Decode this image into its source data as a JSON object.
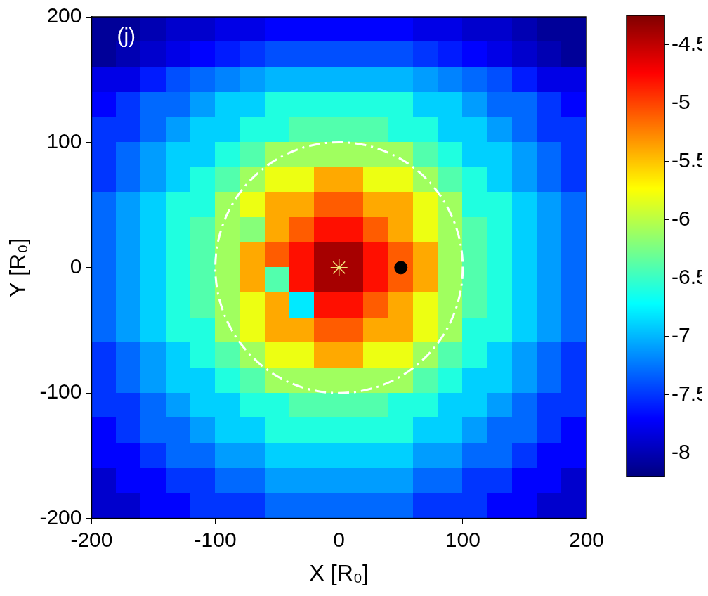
{
  "chart_data": {
    "type": "heatmap",
    "panel": "(j)",
    "x_label": "X [R₀]",
    "y_label": "Y [R₀]",
    "xlim": [
      -200,
      200
    ],
    "ylim": [
      -200,
      200
    ],
    "xticks": [
      -200,
      -100,
      0,
      100,
      200
    ],
    "yticks": [
      -200,
      -100,
      0,
      100,
      200
    ],
    "grid": false,
    "x": [
      -190,
      -170,
      -150,
      -130,
      -110,
      -90,
      -70,
      -50,
      -30,
      -10,
      10,
      30,
      50,
      70,
      90,
      110,
      130,
      150,
      170,
      190
    ],
    "y": [
      190,
      170,
      150,
      130,
      110,
      90,
      70,
      50,
      30,
      10,
      -10,
      -30,
      -50,
      -70,
      -90,
      -110,
      -130,
      -150,
      -170,
      -190
    ],
    "cells": [
      [
        -8.1,
        -8.1,
        -8.0,
        -7.9,
        -7.9,
        -7.8,
        -7.8,
        -7.7,
        -7.7,
        -7.7,
        -7.7,
        -7.7,
        -7.7,
        -7.8,
        -7.8,
        -7.9,
        -7.9,
        -8.0,
        -8.1,
        -8.1
      ],
      [
        -8.1,
        -8.0,
        -7.9,
        -7.8,
        -7.7,
        -7.6,
        -7.5,
        -7.4,
        -7.4,
        -7.4,
        -7.4,
        -7.4,
        -7.4,
        -7.5,
        -7.6,
        -7.7,
        -7.8,
        -7.9,
        -8.0,
        -8.1
      ],
      [
        -7.8,
        -7.8,
        -7.6,
        -7.4,
        -7.3,
        -7.2,
        -7.1,
        -7.0,
        -7.0,
        -7.0,
        -7.0,
        -7.0,
        -7.0,
        -7.1,
        -7.2,
        -7.3,
        -7.4,
        -7.6,
        -7.8,
        -7.8
      ],
      [
        -7.7,
        -7.5,
        -7.3,
        -7.3,
        -7.1,
        -6.9,
        -6.9,
        -6.6,
        -6.6,
        -6.6,
        -6.6,
        -6.6,
        -6.6,
        -6.9,
        -6.9,
        -7.1,
        -7.3,
        -7.3,
        -7.5,
        -7.7
      ],
      [
        -7.5,
        -7.5,
        -7.3,
        -7.1,
        -6.9,
        -6.9,
        -6.6,
        -6.6,
        -6.4,
        -6.4,
        -6.4,
        -6.4,
        -6.6,
        -6.6,
        -6.9,
        -6.9,
        -7.1,
        -7.3,
        -7.5,
        -7.5
      ],
      [
        -7.5,
        -7.3,
        -7.1,
        -6.9,
        -6.9,
        -6.6,
        -6.4,
        -6.1,
        -6.1,
        -6.1,
        -6.1,
        -6.1,
        -6.1,
        -6.4,
        -6.6,
        -6.9,
        -6.9,
        -7.1,
        -7.3,
        -7.5
      ],
      [
        -7.5,
        -7.3,
        -7.1,
        -6.9,
        -6.6,
        -6.4,
        -6.1,
        -5.8,
        -5.8,
        -5.4,
        -5.4,
        -5.8,
        -5.8,
        -6.1,
        -6.4,
        -6.6,
        -6.9,
        -7.1,
        -7.3,
        -7.5
      ],
      [
        -7.3,
        -7.1,
        -6.9,
        -6.6,
        -6.6,
        -6.1,
        -5.8,
        -5.4,
        -5.4,
        -5.1,
        -5.1,
        -5.4,
        -5.4,
        -5.8,
        -6.1,
        -6.6,
        -6.6,
        -6.9,
        -7.1,
        -7.3
      ],
      [
        -7.3,
        -7.1,
        -6.9,
        -6.6,
        -6.4,
        -6.1,
        -6.2,
        -5.4,
        -5.1,
        -4.8,
        -4.8,
        -5.1,
        -5.4,
        -5.8,
        -6.1,
        -6.4,
        -6.6,
        -6.9,
        -7.1,
        -7.3
      ],
      [
        -7.3,
        -7.1,
        -6.9,
        -6.6,
        -6.4,
        -6.1,
        -5.4,
        -5.1,
        -4.8,
        -4.4,
        -4.4,
        -4.8,
        -5.1,
        -5.4,
        -6.1,
        -6.4,
        -6.6,
        -6.9,
        -7.1,
        -7.3
      ],
      [
        -7.3,
        -7.1,
        -6.9,
        -6.6,
        -6.4,
        -6.1,
        -5.4,
        -6.4,
        -4.8,
        -4.4,
        -4.4,
        -4.8,
        -5.1,
        -5.4,
        -6.1,
        -6.4,
        -6.6,
        -6.9,
        -7.1,
        -7.3
      ],
      [
        -7.3,
        -7.1,
        -6.9,
        -6.6,
        -6.4,
        -6.1,
        -5.8,
        -5.4,
        -6.8,
        -4.8,
        -4.8,
        -5.1,
        -5.4,
        -5.8,
        -6.1,
        -6.4,
        -6.6,
        -6.9,
        -7.1,
        -7.3
      ],
      [
        -7.3,
        -7.1,
        -6.9,
        -6.6,
        -6.6,
        -6.1,
        -5.8,
        -5.4,
        -5.4,
        -5.1,
        -5.1,
        -5.4,
        -5.4,
        -5.8,
        -6.1,
        -6.6,
        -6.6,
        -6.9,
        -7.1,
        -7.3
      ],
      [
        -7.5,
        -7.3,
        -7.1,
        -6.9,
        -6.6,
        -6.4,
        -6.1,
        -5.8,
        -5.8,
        -5.4,
        -5.4,
        -5.8,
        -5.8,
        -6.1,
        -6.4,
        -6.6,
        -6.9,
        -7.1,
        -7.3,
        -7.5
      ],
      [
        -7.5,
        -7.3,
        -7.1,
        -6.9,
        -6.9,
        -6.6,
        -6.4,
        -6.1,
        -6.1,
        -6.1,
        -6.1,
        -6.1,
        -6.1,
        -6.4,
        -6.6,
        -6.9,
        -6.9,
        -7.1,
        -7.3,
        -7.5
      ],
      [
        -7.5,
        -7.5,
        -7.3,
        -7.1,
        -6.9,
        -6.9,
        -6.6,
        -6.6,
        -6.4,
        -6.4,
        -6.4,
        -6.4,
        -6.6,
        -6.6,
        -6.9,
        -6.9,
        -7.1,
        -7.3,
        -7.5,
        -7.5
      ],
      [
        -7.7,
        -7.5,
        -7.3,
        -7.3,
        -7.1,
        -6.9,
        -6.9,
        -6.6,
        -6.6,
        -6.6,
        -6.6,
        -6.6,
        -6.6,
        -6.9,
        -6.9,
        -7.1,
        -7.3,
        -7.3,
        -7.5,
        -7.7
      ],
      [
        -7.7,
        -7.7,
        -7.5,
        -7.3,
        -7.3,
        -7.1,
        -7.1,
        -6.9,
        -6.9,
        -6.9,
        -6.9,
        -6.9,
        -6.9,
        -7.1,
        -7.1,
        -7.3,
        -7.3,
        -7.5,
        -7.7,
        -7.7
      ],
      [
        -7.9,
        -7.7,
        -7.7,
        -7.5,
        -7.5,
        -7.3,
        -7.3,
        -7.1,
        -7.1,
        -7.1,
        -7.1,
        -7.1,
        -7.1,
        -7.3,
        -7.3,
        -7.5,
        -7.5,
        -7.7,
        -7.7,
        -7.9
      ],
      [
        -7.9,
        -7.9,
        -7.7,
        -7.7,
        -7.5,
        -7.5,
        -7.5,
        -7.3,
        -7.3,
        -7.3,
        -7.3,
        -7.3,
        -7.3,
        -7.5,
        -7.5,
        -7.5,
        -7.7,
        -7.7,
        -7.9,
        -7.9
      ]
    ],
    "color_range": [
      -8.2,
      -4.25
    ],
    "color_ticks": [
      -8,
      -7.5,
      -7,
      -6.5,
      -6,
      -5.5,
      -5,
      -4.5
    ],
    "circle": {
      "center": [
        0,
        0
      ],
      "radius": 100,
      "color": "#ffffff",
      "line_style": "dashdot"
    },
    "markers": [
      {
        "x": 0,
        "y": 0,
        "marker": "star",
        "color": "#f2e27a"
      },
      {
        "x": 50,
        "y": 0,
        "marker": "circle",
        "color": "#000000"
      }
    ]
  }
}
